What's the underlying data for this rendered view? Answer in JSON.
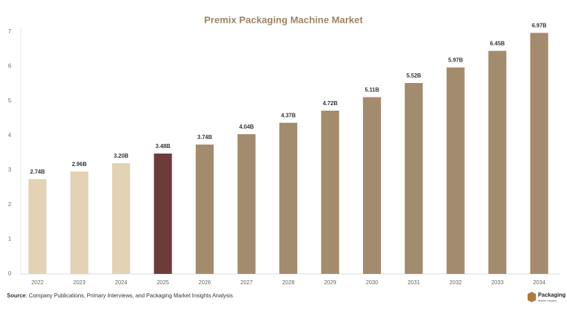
{
  "chart_data": {
    "type": "bar",
    "title": "Premix Packaging Machine Market",
    "categories": [
      "2022",
      "2023",
      "2024",
      "2025",
      "2026",
      "2027",
      "2028",
      "2029",
      "2030",
      "2031",
      "2032",
      "2033",
      "2034"
    ],
    "values": [
      2.74,
      2.96,
      3.2,
      3.48,
      3.74,
      4.04,
      4.37,
      4.72,
      5.11,
      5.52,
      5.97,
      6.45,
      6.97
    ],
    "value_labels": [
      "2.74B",
      "2.96B",
      "3.20B",
      "3.48B",
      "3.74B",
      "4.04B",
      "4.37B",
      "4.72B",
      "5.11B",
      "5.52B",
      "5.97B",
      "6.45B",
      "6.97B"
    ],
    "colors": [
      "#e3d2b4",
      "#e3d2b4",
      "#e3d2b4",
      "#6e3b3b",
      "#a38c6d",
      "#a38c6d",
      "#a38c6d",
      "#a38c6d",
      "#a38c6d",
      "#a38c6d",
      "#a38c6d",
      "#a38c6d",
      "#a38c6d"
    ],
    "ylim": [
      0,
      7
    ],
    "yticks": [
      0,
      1,
      2,
      3,
      4,
      5,
      6,
      7
    ],
    "grid": false
  },
  "footer": {
    "source_label": "Source",
    "source_text": ": Company Publications, Primary Interviews, and Packaging Market Insights Analysis"
  },
  "logo": {
    "name": "Packaging",
    "tagline": "Market Insights"
  }
}
